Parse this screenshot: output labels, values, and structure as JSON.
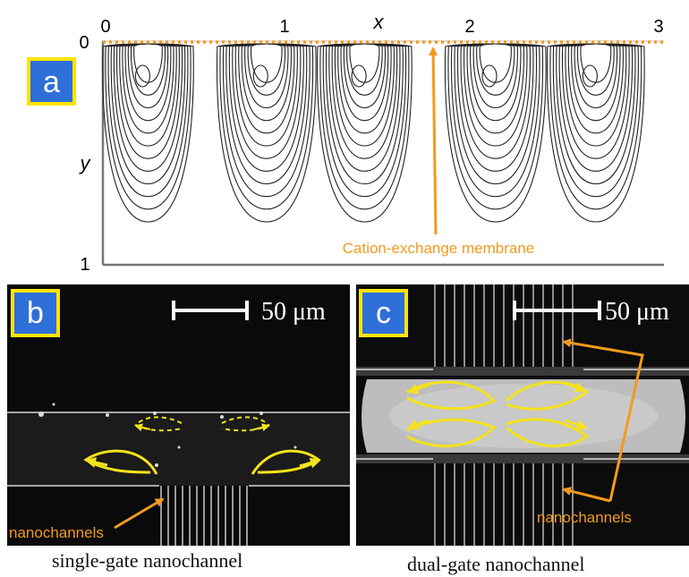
{
  "panel_a": {
    "badge": "a",
    "x_axis_label": "x",
    "y_axis_label": "y",
    "x_ticks": [
      "0",
      "1",
      "2",
      "3"
    ],
    "y_ticks": [
      "0",
      "1"
    ],
    "membrane_label": "Cation-exchange membrane"
  },
  "panel_b": {
    "badge": "b",
    "scale_label": "50 μm",
    "nanochannels_label": "nanochannels",
    "caption": "single-gate nanochannel"
  },
  "panel_c": {
    "badge": "c",
    "scale_label": "50 μm",
    "nanochannels_label": "nanochannels",
    "caption": "dual-gate nanochannel"
  },
  "colors": {
    "badge_fill": "#2f6fd8",
    "badge_border": "#ffe400",
    "orange": "#f39a1e",
    "vortex_yellow": "#f4e21c",
    "contour": "#222222"
  }
}
